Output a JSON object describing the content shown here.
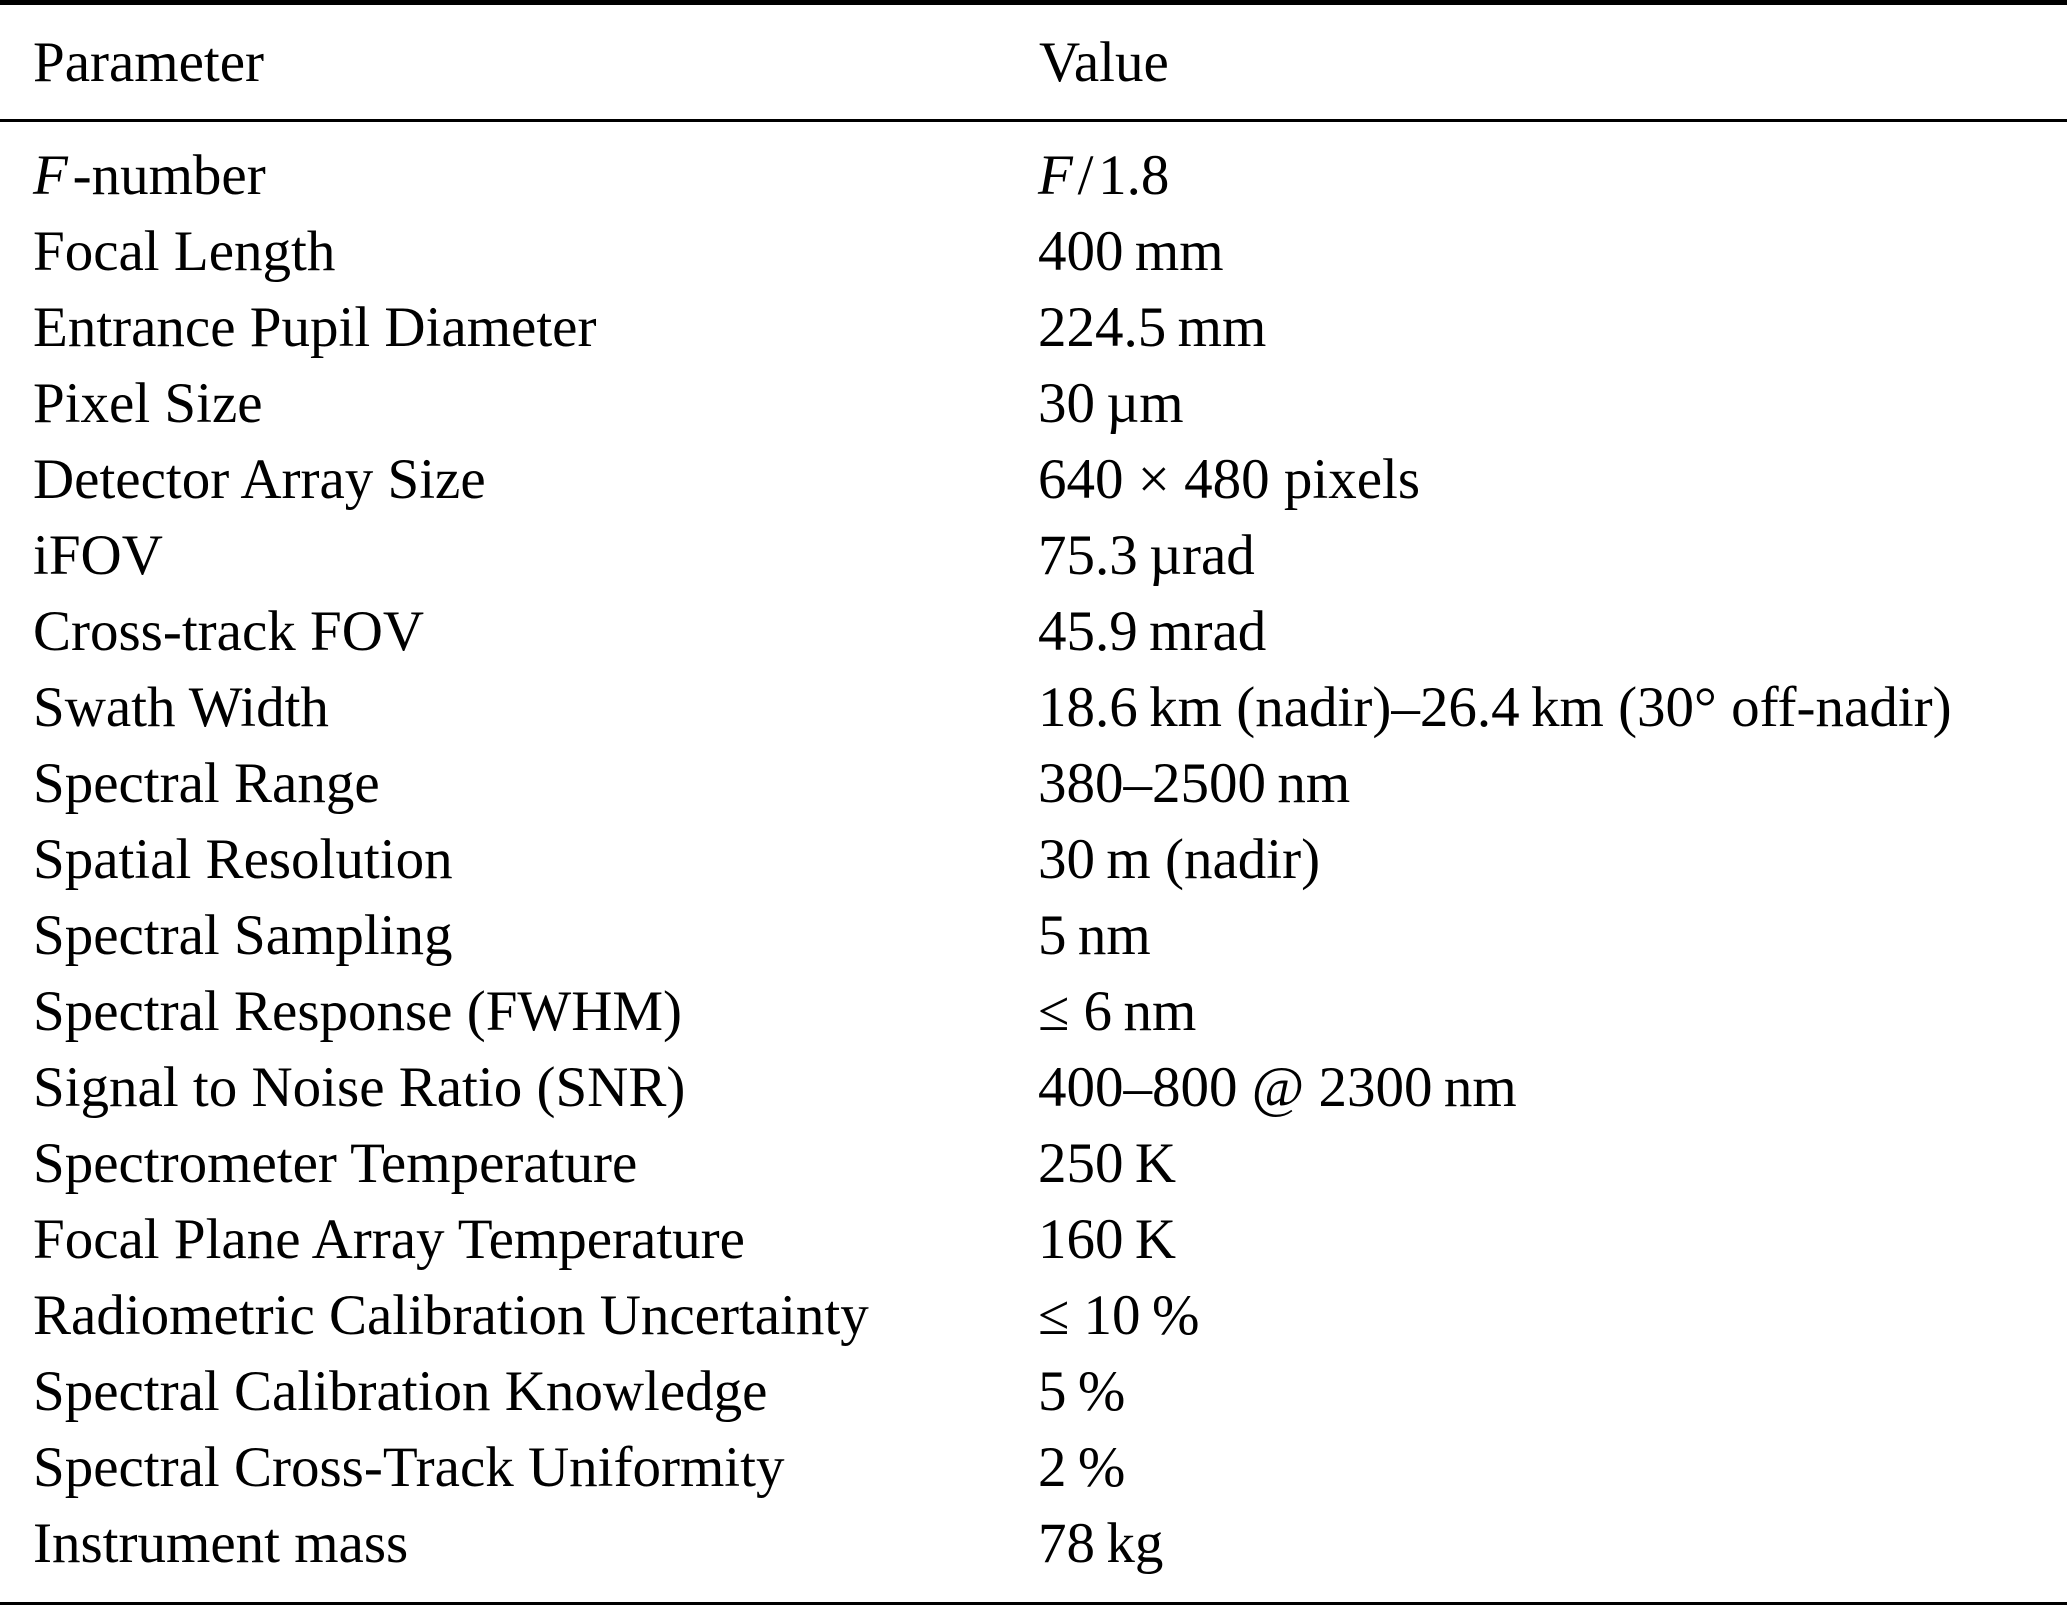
{
  "table": {
    "headers": [
      "Parameter",
      "Value"
    ],
    "rows": [
      {
        "param_italic": "F",
        "param": " -number",
        "value_italic": "F",
        "value": " / 1.8"
      },
      {
        "param": "Focal Length",
        "value": "400 mm"
      },
      {
        "param": "Entrance Pupil Diameter",
        "value": "224.5 mm"
      },
      {
        "param": "Pixel Size",
        "value": "30 µm"
      },
      {
        "param": "Detector Array Size",
        "value": "640 × 480 pixels"
      },
      {
        "param": "iFOV",
        "value": "75.3 µrad"
      },
      {
        "param": "Cross-track FOV",
        "value": "45.9 mrad"
      },
      {
        "param": "Swath Width",
        "value": "18.6 km (nadir)–26.4 km (30° off-nadir)"
      },
      {
        "param": "Spectral Range",
        "value": "380–2500 nm"
      },
      {
        "param": "Spatial Resolution",
        "value": "30 m (nadir)"
      },
      {
        "param": "Spectral Sampling",
        "value": "5 nm"
      },
      {
        "param": "Spectral Response (FWHM)",
        "value": "≤ 6 nm"
      },
      {
        "param": "Signal to Noise Ratio (SNR)",
        "value": "400–800 @ 2300 nm"
      },
      {
        "param": "Spectrometer Temperature",
        "value": "250 K"
      },
      {
        "param": "Focal Plane Array Temperature",
        "value": "160 K"
      },
      {
        "param": "Radiometric Calibration Uncertainty",
        "value": "≤ 10 %"
      },
      {
        "param": "Spectral Calibration Knowledge",
        "value": "5 %"
      },
      {
        "param": "Spectral Cross-Track Uniformity",
        "value": "2 %"
      },
      {
        "param": "Instrument mass",
        "value": "78 kg"
      }
    ]
  }
}
